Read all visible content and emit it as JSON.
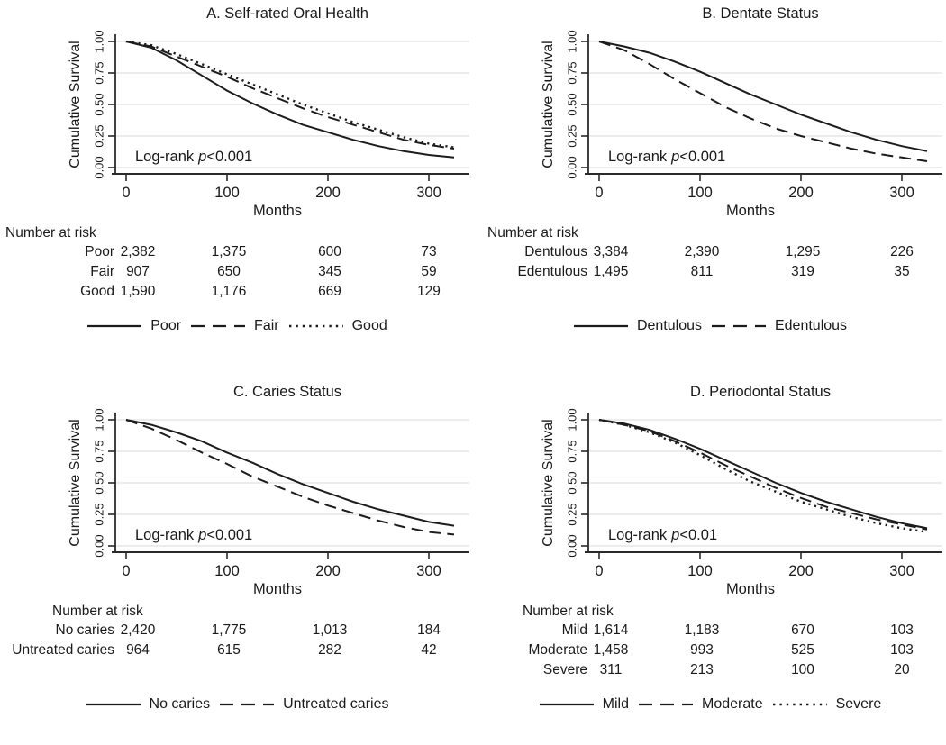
{
  "chart_data": [
    {
      "type": "line",
      "title": "A. Self-rated Oral Health",
      "xlabel": "Months",
      "ylabel": "Cumulative Survival",
      "xlim": [
        0,
        330
      ],
      "ylim": [
        0,
        1
      ],
      "xticks": [
        0,
        100,
        200,
        300
      ],
      "yticks": [
        "0.00",
        "0.25",
        "0.50",
        "0.75",
        "1.00"
      ],
      "grid": "horizontal",
      "legend_position": "bottom",
      "annotation": {
        "prefix": "Log-rank",
        "p_symbol": "p",
        "value": "<0.001"
      },
      "x": [
        0,
        25,
        50,
        75,
        100,
        125,
        150,
        175,
        200,
        225,
        250,
        275,
        300,
        325
      ],
      "series": [
        {
          "name": "Poor",
          "style": "solid",
          "values": [
            1.0,
            0.95,
            0.85,
            0.73,
            0.61,
            0.51,
            0.42,
            0.34,
            0.28,
            0.22,
            0.17,
            0.13,
            0.1,
            0.08
          ]
        },
        {
          "name": "Fair",
          "style": "dash",
          "values": [
            1.0,
            0.96,
            0.88,
            0.8,
            0.72,
            0.63,
            0.55,
            0.47,
            0.4,
            0.34,
            0.28,
            0.22,
            0.18,
            0.15
          ]
        },
        {
          "name": "Good",
          "style": "dot",
          "values": [
            1.0,
            0.97,
            0.9,
            0.82,
            0.74,
            0.66,
            0.58,
            0.5,
            0.43,
            0.36,
            0.3,
            0.24,
            0.19,
            0.16
          ]
        }
      ]
    },
    {
      "type": "line",
      "title": "B. Dentate Status",
      "xlabel": "Months",
      "ylabel": "Cumulative Survival",
      "xlim": [
        0,
        330
      ],
      "ylim": [
        0,
        1
      ],
      "xticks": [
        0,
        100,
        200,
        300
      ],
      "yticks": [
        "0.00",
        "0.25",
        "0.50",
        "0.75",
        "1.00"
      ],
      "grid": "horizontal",
      "legend_position": "bottom",
      "annotation": {
        "prefix": "Log-rank",
        "p_symbol": "p",
        "value": "<0.001"
      },
      "x": [
        0,
        25,
        50,
        75,
        100,
        125,
        150,
        175,
        200,
        225,
        250,
        275,
        300,
        325
      ],
      "series": [
        {
          "name": "Dentulous",
          "style": "solid",
          "values": [
            1.0,
            0.96,
            0.91,
            0.84,
            0.76,
            0.67,
            0.58,
            0.5,
            0.42,
            0.35,
            0.28,
            0.22,
            0.17,
            0.13
          ]
        },
        {
          "name": "Edentulous",
          "style": "dash",
          "values": [
            1.0,
            0.93,
            0.82,
            0.7,
            0.59,
            0.48,
            0.39,
            0.31,
            0.25,
            0.2,
            0.15,
            0.11,
            0.08,
            0.05
          ]
        }
      ]
    },
    {
      "type": "line",
      "title": "C. Caries Status",
      "xlabel": "Months",
      "ylabel": "Cumulative Survival",
      "xlim": [
        0,
        330
      ],
      "ylim": [
        0,
        1
      ],
      "xticks": [
        0,
        100,
        200,
        300
      ],
      "yticks": [
        "0.00",
        "0.25",
        "0.50",
        "0.75",
        "1.00"
      ],
      "grid": "horizontal",
      "legend_position": "bottom",
      "annotation": {
        "prefix": "Log-rank",
        "p_symbol": "p",
        "value": "<0.001"
      },
      "x": [
        0,
        25,
        50,
        75,
        100,
        125,
        150,
        175,
        200,
        225,
        250,
        275,
        300,
        325
      ],
      "series": [
        {
          "name": "No caries",
          "style": "solid",
          "values": [
            1.0,
            0.96,
            0.9,
            0.83,
            0.74,
            0.66,
            0.57,
            0.49,
            0.42,
            0.35,
            0.29,
            0.24,
            0.19,
            0.16
          ]
        },
        {
          "name": "Untreated caries",
          "style": "dash",
          "values": [
            1.0,
            0.93,
            0.84,
            0.74,
            0.65,
            0.55,
            0.47,
            0.39,
            0.32,
            0.26,
            0.2,
            0.15,
            0.11,
            0.09
          ]
        }
      ]
    },
    {
      "type": "line",
      "title": "D. Periodontal Status",
      "xlabel": "Months",
      "ylabel": "Cumulative Survival",
      "xlim": [
        0,
        330
      ],
      "ylim": [
        0,
        1
      ],
      "xticks": [
        0,
        100,
        200,
        300
      ],
      "yticks": [
        "0.00",
        "0.25",
        "0.50",
        "0.75",
        "1.00"
      ],
      "grid": "horizontal",
      "legend_position": "bottom",
      "annotation": {
        "prefix": "Log-rank",
        "p_symbol": "p",
        "value": "<0.01"
      },
      "x": [
        0,
        25,
        50,
        75,
        100,
        125,
        150,
        175,
        200,
        225,
        250,
        275,
        300,
        325
      ],
      "series": [
        {
          "name": "Mild",
          "style": "solid",
          "values": [
            1.0,
            0.97,
            0.92,
            0.85,
            0.77,
            0.68,
            0.59,
            0.5,
            0.42,
            0.35,
            0.29,
            0.23,
            0.18,
            0.14
          ]
        },
        {
          "name": "Moderate",
          "style": "dash",
          "values": [
            1.0,
            0.96,
            0.91,
            0.83,
            0.74,
            0.64,
            0.55,
            0.46,
            0.38,
            0.31,
            0.26,
            0.21,
            0.17,
            0.13
          ]
        },
        {
          "name": "Severe",
          "style": "dot",
          "values": [
            1.0,
            0.96,
            0.9,
            0.82,
            0.72,
            0.61,
            0.51,
            0.43,
            0.35,
            0.29,
            0.23,
            0.18,
            0.14,
            0.11
          ]
        }
      ]
    }
  ],
  "panels": [
    {
      "risk_table": {
        "header": "Number at risk",
        "rows": [
          {
            "label": "Poor",
            "values": [
              "2,382",
              "1,375",
              "600",
              "73"
            ]
          },
          {
            "label": "Fair",
            "values": [
              "907",
              "650",
              "345",
              "59"
            ]
          },
          {
            "label": "Good",
            "values": [
              "1,590",
              "1,176",
              "669",
              "129"
            ]
          }
        ]
      },
      "legend": [
        {
          "label": "Poor",
          "style": "solid"
        },
        {
          "label": "Fair",
          "style": "dash"
        },
        {
          "label": "Good",
          "style": "dot"
        }
      ]
    },
    {
      "risk_table": {
        "header": "Number at risk",
        "rows": [
          {
            "label": "Dentulous",
            "values": [
              "3,384",
              "2,390",
              "1,295",
              "226"
            ]
          },
          {
            "label": "Edentulous",
            "values": [
              "1,495",
              "811",
              "319",
              "35"
            ]
          }
        ]
      },
      "legend": [
        {
          "label": "Dentulous",
          "style": "solid"
        },
        {
          "label": "Edentulous",
          "style": "dash"
        }
      ]
    },
    {
      "risk_table": {
        "header": "Number at risk",
        "rows": [
          {
            "label": "No caries",
            "values": [
              "2,420",
              "1,775",
              "1,013",
              "184"
            ]
          },
          {
            "label": "Untreated caries",
            "values": [
              "964",
              "615",
              "282",
              "42"
            ]
          }
        ]
      },
      "legend": [
        {
          "label": "No caries",
          "style": "solid"
        },
        {
          "label": "Untreated caries",
          "style": "dash"
        }
      ]
    },
    {
      "risk_table": {
        "header": "Number at risk",
        "rows": [
          {
            "label": "Mild",
            "values": [
              "1,614",
              "1,183",
              "670",
              "103"
            ]
          },
          {
            "label": "Moderate",
            "values": [
              "1,458",
              "993",
              "525",
              "103"
            ]
          },
          {
            "label": "Severe",
            "values": [
              "311",
              "213",
              "100",
              "20"
            ]
          }
        ]
      },
      "legend": [
        {
          "label": "Mild",
          "style": "solid"
        },
        {
          "label": "Moderate",
          "style": "dash"
        },
        {
          "label": "Severe",
          "style": "dot"
        }
      ]
    }
  ]
}
